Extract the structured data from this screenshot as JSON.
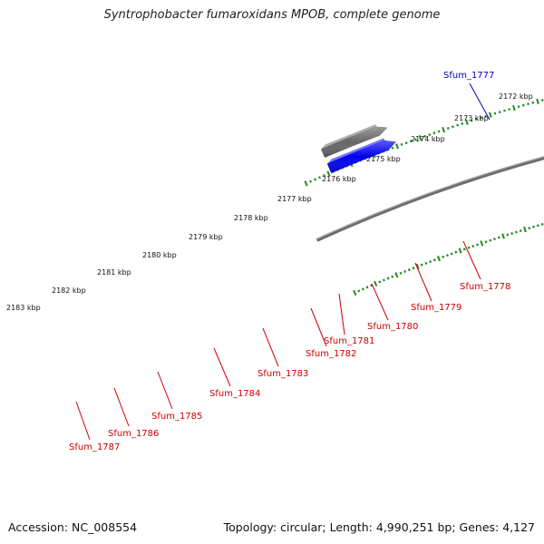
{
  "title": "Syntrophobacter fumaroxidans MPOB, complete genome",
  "accession_text": "Accession: NC_008554",
  "topology_text": "Topology: circular; Length: 4,990,251 bp; Genes: 4,127",
  "kbp_labels": [
    "2172 kbp",
    "2173 kbp",
    "2174 kbp",
    "2175 kbp",
    "2176 kbp",
    "2177 kbp",
    "2178 kbp",
    "2179 kbp",
    "2180 kbp",
    "2181 kbp",
    "2182 kbp",
    "2183 kbp"
  ],
  "gene_labels": [
    "Sfum_1777",
    "Sfum_1778",
    "Sfum_1779",
    "Sfum_1780",
    "Sfum_1781",
    "Sfum_1782",
    "Sfum_1783",
    "Sfum_1784",
    "Sfum_1785",
    "Sfum_1786",
    "Sfum_1787"
  ],
  "colors": {
    "red": "#ff0000",
    "pink": "#f08080",
    "blue": "#0000ee",
    "steelblue": "#4682b4",
    "slateblue": "#6a5acd",
    "cyan": "#00bfff",
    "olive": "#6b8e23",
    "khaki": "#bdb76b",
    "gray": "#666666",
    "tick_green": "#228b22",
    "label_red": "#cc0000",
    "label_blue": "#0000bb"
  }
}
